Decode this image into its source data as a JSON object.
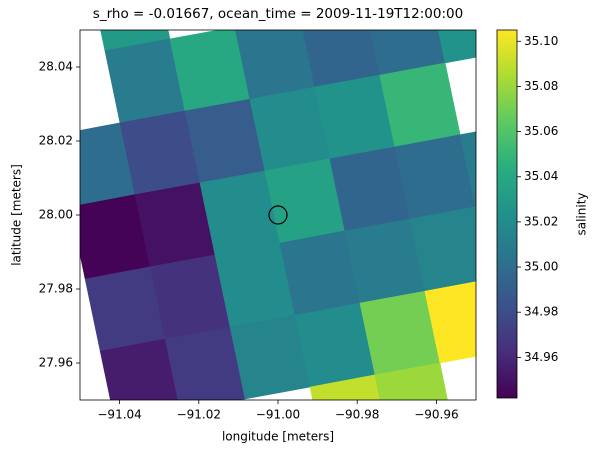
{
  "chart_data": {
    "type": "pcolormesh",
    "title": "s_rho = -0.01667, ocean_time = 2009-11-19T12:00:00",
    "x_label": "longitude [meters]",
    "y_label": "latitude [meters]",
    "colorbar_label": "salinity",
    "colormap": "viridis",
    "xlim": [
      -91.05,
      -90.95
    ],
    "ylim": [
      27.95,
      28.05
    ],
    "clim": [
      34.942,
      35.105
    ],
    "xticks": [
      {
        "value": -91.04,
        "label": "−91.04"
      },
      {
        "value": -91.02,
        "label": "−91.02"
      },
      {
        "value": -91.0,
        "label": "−91.00"
      },
      {
        "value": -90.98,
        "label": "−90.98"
      },
      {
        "value": -90.96,
        "label": "−90.96"
      }
    ],
    "yticks": [
      27.96,
      27.98,
      {
        "value": 28.0,
        "label": "28.00"
      },
      28.02,
      28.04
    ],
    "cticks": [
      34.96,
      34.98,
      {
        "value": 35.0,
        "label": "35.00"
      },
      35.02,
      35.04,
      35.06,
      35.08,
      {
        "value": 35.1,
        "label": "35.10"
      }
    ],
    "x": [
      [
        -91.0639,
        -91.0475,
        -91.0311,
        -91.0147,
        -90.9983,
        -90.9819,
        -90.9654,
        -90.949
      ],
      [
        -91.0601,
        -91.0437,
        -91.0273,
        -91.0109,
        -90.9945,
        -90.9781,
        -90.9616,
        -90.9452
      ],
      [
        -91.0563,
        -91.0399,
        -91.0235,
        -91.0071,
        -90.9907,
        -90.9743,
        -90.9578,
        -90.9414
      ],
      [
        -91.0525,
        -91.0361,
        -91.0197,
        -91.0033,
        -90.9869,
        -90.9705,
        -90.954,
        -90.9376
      ],
      [
        -91.0487,
        -91.0323,
        -91.0159,
        -90.9995,
        -90.9831,
        -90.9667,
        -90.9502,
        -90.9338
      ],
      [
        -91.0449,
        -91.0285,
        -91.0121,
        -90.9957,
        -90.9793,
        -90.9629,
        -90.9464,
        -90.93
      ],
      [
        -91.0411,
        -91.0247,
        -91.0083,
        -90.9919,
        -90.9755,
        -90.9591,
        -90.9426,
        -90.9262
      ],
      [
        -91.0374,
        -91.021,
        -91.0046,
        -90.9882,
        -90.9718,
        -90.9554,
        -90.9389,
        -90.9225
      ]
    ],
    "y": [
      [
        28.0605,
        28.0638,
        28.067,
        28.0702,
        28.0735,
        28.0767,
        28.08,
        28.0832
      ],
      [
        28.0411,
        28.0444,
        28.0476,
        28.0508,
        28.0541,
        28.0573,
        28.0606,
        28.0638
      ],
      [
        28.0216,
        28.0249,
        28.0281,
        28.0313,
        28.0346,
        28.0378,
        28.0411,
        28.0443
      ],
      [
        28.0022,
        28.0055,
        28.0087,
        28.0119,
        28.0152,
        28.0184,
        28.0217,
        28.0249
      ],
      [
        27.9827,
        27.986,
        27.9892,
        27.9924,
        27.9957,
        27.9989,
        28.0022,
        28.0054
      ],
      [
        27.9632,
        27.9665,
        27.9697,
        27.9729,
        27.9762,
        27.9794,
        27.9827,
        27.9859
      ],
      [
        27.9438,
        27.9471,
        27.9503,
        27.9535,
        27.9568,
        27.96,
        27.9633,
        27.9665
      ],
      [
        27.9243,
        27.9276,
        27.9308,
        27.934,
        27.9373,
        27.9405,
        27.9438,
        27.947
      ]
    ],
    "values": [
      [
        null,
        35.03,
        null,
        null,
        null,
        null,
        null
      ],
      [
        null,
        35.01,
        35.04,
        35.005,
        34.995,
        35.0,
        35.025
      ],
      [
        35.0,
        34.98,
        34.99,
        35.02,
        35.025,
        35.05,
        null
      ],
      [
        34.943,
        34.95,
        35.02,
        35.035,
        34.995,
        35.0,
        35.01
      ],
      [
        34.97,
        34.965,
        35.02,
        35.005,
        35.01,
        35.015,
        null
      ],
      [
        34.955,
        34.97,
        35.015,
        35.02,
        35.07,
        35.105,
        null
      ],
      [
        null,
        null,
        null,
        35.09,
        35.08,
        null,
        null
      ]
    ],
    "marker": {
      "x": -91.0,
      "y": 28.0
    }
  }
}
